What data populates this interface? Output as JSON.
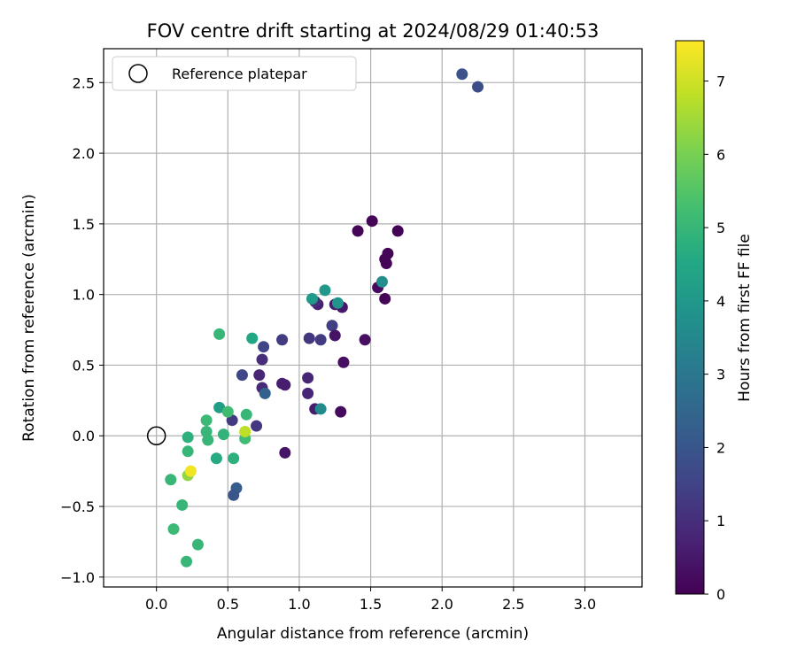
{
  "chart_data": {
    "type": "scatter",
    "title": "FOV centre drift starting at 2024/08/29 01:40:53",
    "xlabel": "Angular distance from reference (arcmin)",
    "ylabel": "Rotation from reference (arcmin)",
    "xlim": [
      -0.37,
      3.4
    ],
    "ylim": [
      -1.07,
      2.74
    ],
    "xticks": [
      0.0,
      0.5,
      1.0,
      1.5,
      2.0,
      2.5,
      3.0
    ],
    "xtick_labels": [
      "0.0",
      "0.5",
      "1.0",
      "1.5",
      "2.0",
      "2.5",
      "3.0"
    ],
    "yticks": [
      -1.0,
      -0.5,
      0.0,
      0.5,
      1.0,
      1.5,
      2.0,
      2.5
    ],
    "ytick_labels": [
      "−1.0",
      "−0.5",
      "0.0",
      "0.5",
      "1.0",
      "1.5",
      "2.0",
      "2.5"
    ],
    "grid": true,
    "legend": {
      "placement": "top-left",
      "entries": [
        "Reference platepar"
      ]
    },
    "reference_point": {
      "x": 0.0,
      "y": 0.0
    },
    "colorbar": {
      "label": "Hours from first FF file",
      "colormap": "viridis",
      "range": [
        0,
        7.55
      ],
      "ticks": [
        0,
        1,
        2,
        3,
        4,
        5,
        6,
        7
      ],
      "tick_labels": [
        "0",
        "1",
        "2",
        "3",
        "4",
        "5",
        "6",
        "7"
      ]
    },
    "points": [
      {
        "x": 1.51,
        "y": 1.52,
        "h": 0.1
      },
      {
        "x": 1.41,
        "y": 1.45,
        "h": 0.1
      },
      {
        "x": 1.69,
        "y": 1.45,
        "h": 0.05
      },
      {
        "x": 1.62,
        "y": 1.29,
        "h": 0.1
      },
      {
        "x": 1.6,
        "y": 1.25,
        "h": 0.1
      },
      {
        "x": 1.61,
        "y": 1.22,
        "h": 0.1
      },
      {
        "x": 1.55,
        "y": 1.05,
        "h": 0.2
      },
      {
        "x": 1.6,
        "y": 0.97,
        "h": 0.1
      },
      {
        "x": 1.46,
        "y": 0.68,
        "h": 0.3
      },
      {
        "x": 1.3,
        "y": 0.91,
        "h": 0.5
      },
      {
        "x": 1.25,
        "y": 0.93,
        "h": 0.6
      },
      {
        "x": 1.13,
        "y": 0.93,
        "h": 0.7
      },
      {
        "x": 1.11,
        "y": 0.95,
        "h": 1.0
      },
      {
        "x": 1.23,
        "y": 0.78,
        "h": 1.4
      },
      {
        "x": 1.25,
        "y": 0.71,
        "h": 0.4
      },
      {
        "x": 1.15,
        "y": 0.68,
        "h": 1.3
      },
      {
        "x": 1.07,
        "y": 0.69,
        "h": 1.2
      },
      {
        "x": 0.88,
        "y": 0.68,
        "h": 1.3
      },
      {
        "x": 1.31,
        "y": 0.52,
        "h": 0.3
      },
      {
        "x": 1.06,
        "y": 0.41,
        "h": 0.8
      },
      {
        "x": 1.06,
        "y": 0.3,
        "h": 0.8
      },
      {
        "x": 1.11,
        "y": 0.19,
        "h": 0.6
      },
      {
        "x": 1.29,
        "y": 0.17,
        "h": 0.2
      },
      {
        "x": 0.88,
        "y": 0.37,
        "h": 0.7
      },
      {
        "x": 0.9,
        "y": 0.36,
        "h": 0.6
      },
      {
        "x": 0.9,
        "y": -0.12,
        "h": 0.4
      },
      {
        "x": 0.75,
        "y": 0.63,
        "h": 1.5
      },
      {
        "x": 0.74,
        "y": 0.54,
        "h": 1.0
      },
      {
        "x": 0.72,
        "y": 0.43,
        "h": 0.8
      },
      {
        "x": 0.74,
        "y": 0.34,
        "h": 0.9
      },
      {
        "x": 0.76,
        "y": 0.3,
        "h": 2.3
      },
      {
        "x": 0.6,
        "y": 0.43,
        "h": 1.6
      },
      {
        "x": 0.7,
        "y": 0.07,
        "h": 1.2
      },
      {
        "x": 0.53,
        "y": 0.11,
        "h": 1.3
      },
      {
        "x": 0.56,
        "y": -0.37,
        "h": 2.2
      },
      {
        "x": 0.54,
        "y": -0.42,
        "h": 2.0
      },
      {
        "x": 2.14,
        "y": 2.56,
        "h": 1.9
      },
      {
        "x": 2.25,
        "y": 2.47,
        "h": 1.8
      },
      {
        "x": 1.09,
        "y": 0.97,
        "h": 4.1
      },
      {
        "x": 1.18,
        "y": 1.03,
        "h": 4.0
      },
      {
        "x": 1.27,
        "y": 0.94,
        "h": 3.9
      },
      {
        "x": 1.58,
        "y": 1.09,
        "h": 3.7
      },
      {
        "x": 1.15,
        "y": 0.19,
        "h": 3.6
      },
      {
        "x": 0.67,
        "y": 0.69,
        "h": 4.5
      },
      {
        "x": 0.44,
        "y": 0.72,
        "h": 5.0
      },
      {
        "x": 0.44,
        "y": 0.2,
        "h": 4.2
      },
      {
        "x": 0.5,
        "y": 0.17,
        "h": 5.2
      },
      {
        "x": 0.63,
        "y": 0.15,
        "h": 5.0
      },
      {
        "x": 0.35,
        "y": 0.11,
        "h": 5.1
      },
      {
        "x": 0.35,
        "y": 0.03,
        "h": 5.0
      },
      {
        "x": 0.36,
        "y": -0.03,
        "h": 5.0
      },
      {
        "x": 0.47,
        "y": 0.01,
        "h": 4.9
      },
      {
        "x": 0.62,
        "y": -0.02,
        "h": 5.2
      },
      {
        "x": 0.62,
        "y": 0.03,
        "h": 6.8
      },
      {
        "x": 0.22,
        "y": -0.01,
        "h": 4.8
      },
      {
        "x": 0.22,
        "y": -0.11,
        "h": 5.0
      },
      {
        "x": 0.42,
        "y": -0.16,
        "h": 4.6
      },
      {
        "x": 0.54,
        "y": -0.16,
        "h": 4.8
      },
      {
        "x": 0.1,
        "y": -0.31,
        "h": 5.0
      },
      {
        "x": 0.22,
        "y": -0.28,
        "h": 6.3
      },
      {
        "x": 0.24,
        "y": -0.25,
        "h": 7.4
      },
      {
        "x": 0.18,
        "y": -0.49,
        "h": 5.0
      },
      {
        "x": 0.12,
        "y": -0.66,
        "h": 5.1
      },
      {
        "x": 0.29,
        "y": -0.77,
        "h": 5.0
      },
      {
        "x": 0.21,
        "y": -0.89,
        "h": 5.0
      }
    ]
  }
}
